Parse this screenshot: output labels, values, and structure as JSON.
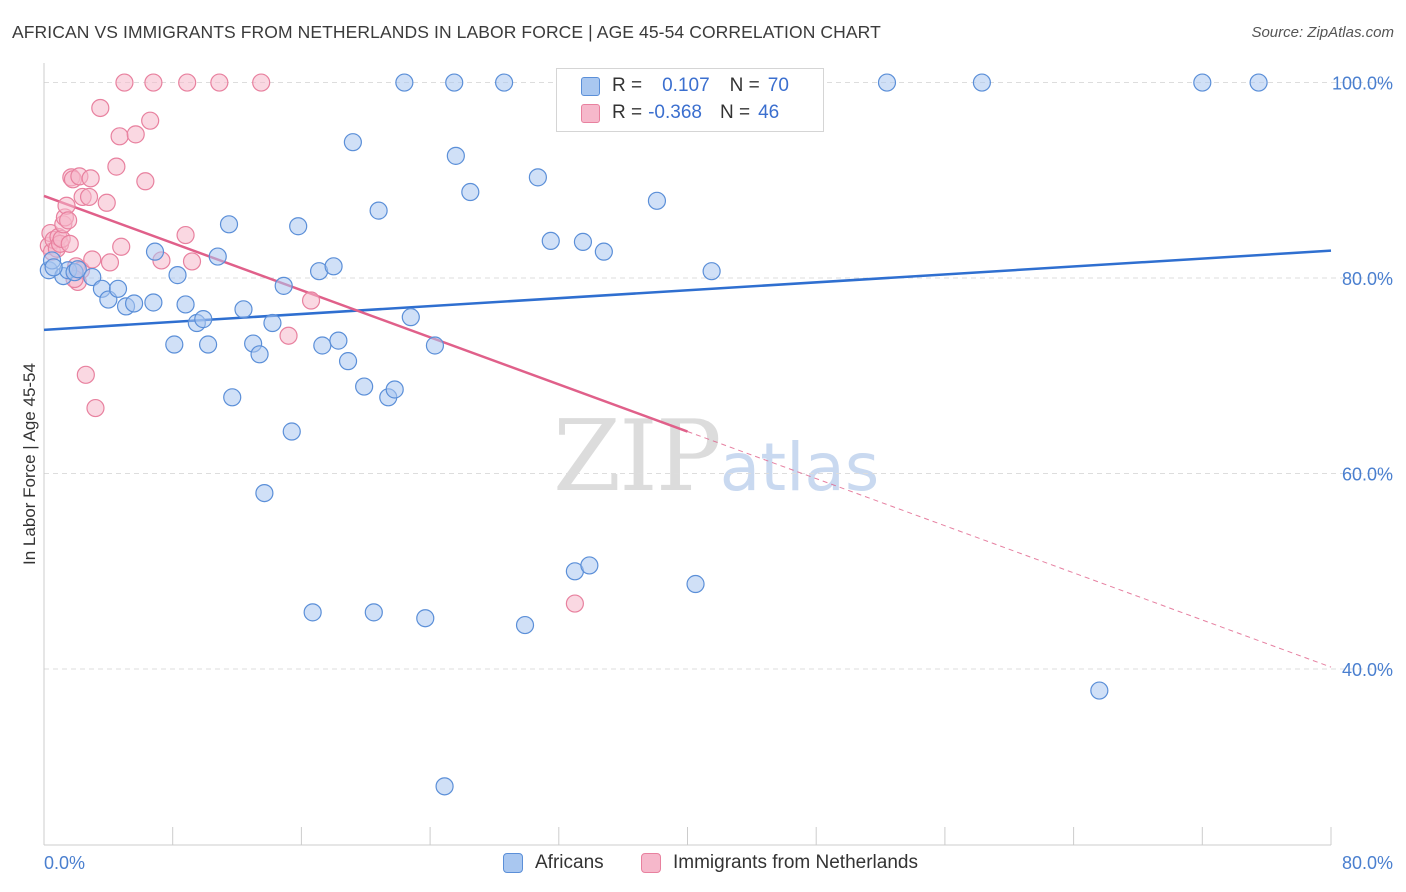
{
  "title": "AFRICAN VS IMMIGRANTS FROM NETHERLANDS IN LABOR FORCE | AGE 45-54 CORRELATION CHART",
  "source": "Source: ZipAtlas.com",
  "watermark": {
    "zip": "ZIP",
    "atlas": "atlas"
  },
  "legend": {
    "rows": [
      {
        "r_label": "R =",
        "r_value": "0.107",
        "n_label": "N =",
        "n_value": "70"
      },
      {
        "r_label": "R =",
        "r_value": "-0.368",
        "n_label": "N =",
        "n_value": "46"
      }
    ]
  },
  "bottom_legend": [
    "Africans",
    "Immigrants from Netherlands"
  ],
  "colors": {
    "blue_fill": "#a9c7f0",
    "blue_stroke": "#5b8fd8",
    "blue_line": "#2f6fd0",
    "pink_fill": "#f6b8cb",
    "pink_stroke": "#e8819f",
    "pink_line": "#e0608a",
    "grid": "#dddddd",
    "axis_label": "#4a7fcf"
  },
  "chart_data": {
    "type": "scatter",
    "title": "AFRICAN VS IMMIGRANTS FROM NETHERLANDS IN LABOR FORCE | AGE 45-54 CORRELATION CHART",
    "xlabel": "",
    "ylabel": "In Labor Force | Age 45-54",
    "xlim": [
      0,
      80
    ],
    "ylim": [
      22,
      102
    ],
    "x_tick_labels": [
      "0.0%",
      "80.0%"
    ],
    "y_ticks": [
      40,
      60,
      80,
      100
    ],
    "y_tick_labels": [
      "40.0%",
      "60.0%",
      "80.0%",
      "100.0%"
    ],
    "grid": true,
    "legend_position": "top-center",
    "series": [
      {
        "name": "Africans",
        "r": 0.107,
        "n": 70,
        "trend": {
          "x": [
            0,
            80
          ],
          "y": [
            74.7,
            82.8
          ],
          "dashed_extension": false
        },
        "points": [
          [
            0.3,
            80.8
          ],
          [
            0.5,
            81.8
          ],
          [
            1.2,
            80.2
          ],
          [
            1.5,
            80.8
          ],
          [
            1.9,
            80.6
          ],
          [
            2.1,
            80.9
          ],
          [
            3.0,
            80.1
          ],
          [
            3.6,
            78.9
          ],
          [
            4.0,
            77.8
          ],
          [
            4.6,
            78.9
          ],
          [
            5.1,
            77.1
          ],
          [
            5.6,
            77.4
          ],
          [
            6.8,
            77.5
          ],
          [
            6.9,
            82.7
          ],
          [
            8.1,
            73.2
          ],
          [
            8.3,
            80.3
          ],
          [
            8.8,
            77.3
          ],
          [
            9.5,
            75.4
          ],
          [
            9.9,
            75.8
          ],
          [
            10.2,
            73.2
          ],
          [
            10.8,
            82.2
          ],
          [
            11.5,
            85.5
          ],
          [
            11.7,
            67.8
          ],
          [
            12.4,
            76.8
          ],
          [
            13.0,
            73.3
          ],
          [
            13.4,
            72.2
          ],
          [
            13.7,
            58.0
          ],
          [
            14.2,
            75.4
          ],
          [
            14.9,
            79.2
          ],
          [
            15.4,
            64.3
          ],
          [
            15.8,
            85.3
          ],
          [
            16.7,
            45.8
          ],
          [
            17.1,
            80.7
          ],
          [
            17.3,
            73.1
          ],
          [
            18.0,
            81.2
          ],
          [
            18.3,
            73.6
          ],
          [
            18.9,
            71.5
          ],
          [
            19.2,
            93.9
          ],
          [
            19.9,
            68.9
          ],
          [
            20.5,
            45.8
          ],
          [
            20.8,
            86.9
          ],
          [
            21.4,
            67.8
          ],
          [
            21.8,
            68.6
          ],
          [
            22.4,
            100.0
          ],
          [
            22.8,
            76.0
          ],
          [
            23.7,
            45.2
          ],
          [
            24.3,
            73.1
          ],
          [
            24.9,
            28.0
          ],
          [
            25.5,
            100.0
          ],
          [
            25.6,
            92.5
          ],
          [
            26.5,
            88.8
          ],
          [
            28.6,
            100.0
          ],
          [
            29.9,
            44.5
          ],
          [
            30.7,
            90.3
          ],
          [
            31.5,
            83.8
          ],
          [
            33.0,
            50.0
          ],
          [
            33.5,
            83.7
          ],
          [
            33.9,
            50.6
          ],
          [
            34.8,
            82.7
          ],
          [
            35.0,
            100.0
          ],
          [
            38.1,
            87.9
          ],
          [
            40.5,
            48.7
          ],
          [
            41.5,
            80.7
          ],
          [
            43.0,
            100.0
          ],
          [
            52.4,
            100.0
          ],
          [
            58.3,
            100.0
          ],
          [
            65.6,
            37.8
          ],
          [
            72.0,
            100.0
          ],
          [
            75.5,
            100.0
          ],
          [
            0.6,
            81.1
          ]
        ]
      },
      {
        "name": "Immigrants from Netherlands",
        "r": -0.368,
        "n": 46,
        "trend": {
          "x": [
            0,
            80
          ],
          "y": [
            88.4,
            40.2
          ],
          "solid_until_x": 40
        },
        "points": [
          [
            0.3,
            83.3
          ],
          [
            0.4,
            84.6
          ],
          [
            0.5,
            82.7
          ],
          [
            0.6,
            83.9
          ],
          [
            0.8,
            83.0
          ],
          [
            0.9,
            84.2
          ],
          [
            1.0,
            83.5
          ],
          [
            1.1,
            84.0
          ],
          [
            1.2,
            85.5
          ],
          [
            1.3,
            86.2
          ],
          [
            1.4,
            87.4
          ],
          [
            1.5,
            85.9
          ],
          [
            1.6,
            83.5
          ],
          [
            1.7,
            90.3
          ],
          [
            1.8,
            90.1
          ],
          [
            2.0,
            81.2
          ],
          [
            2.1,
            79.6
          ],
          [
            2.2,
            90.4
          ],
          [
            2.3,
            80.8
          ],
          [
            2.4,
            88.3
          ],
          [
            2.6,
            70.1
          ],
          [
            2.8,
            88.3
          ],
          [
            2.9,
            90.2
          ],
          [
            3.0,
            81.9
          ],
          [
            3.2,
            66.7
          ],
          [
            3.5,
            97.4
          ],
          [
            3.9,
            87.7
          ],
          [
            4.1,
            81.6
          ],
          [
            4.5,
            91.4
          ],
          [
            4.7,
            94.5
          ],
          [
            4.8,
            83.2
          ],
          [
            5.0,
            100.0
          ],
          [
            5.7,
            94.7
          ],
          [
            6.3,
            89.9
          ],
          [
            6.6,
            96.1
          ],
          [
            6.8,
            100.0
          ],
          [
            7.3,
            81.8
          ],
          [
            8.9,
            100.0
          ],
          [
            8.8,
            84.4
          ],
          [
            9.2,
            81.7
          ],
          [
            10.9,
            100.0
          ],
          [
            13.5,
            100.0
          ],
          [
            15.2,
            74.1
          ],
          [
            16.6,
            77.7
          ],
          [
            33.0,
            46.7
          ],
          [
            1.9,
            79.9
          ]
        ]
      }
    ]
  }
}
